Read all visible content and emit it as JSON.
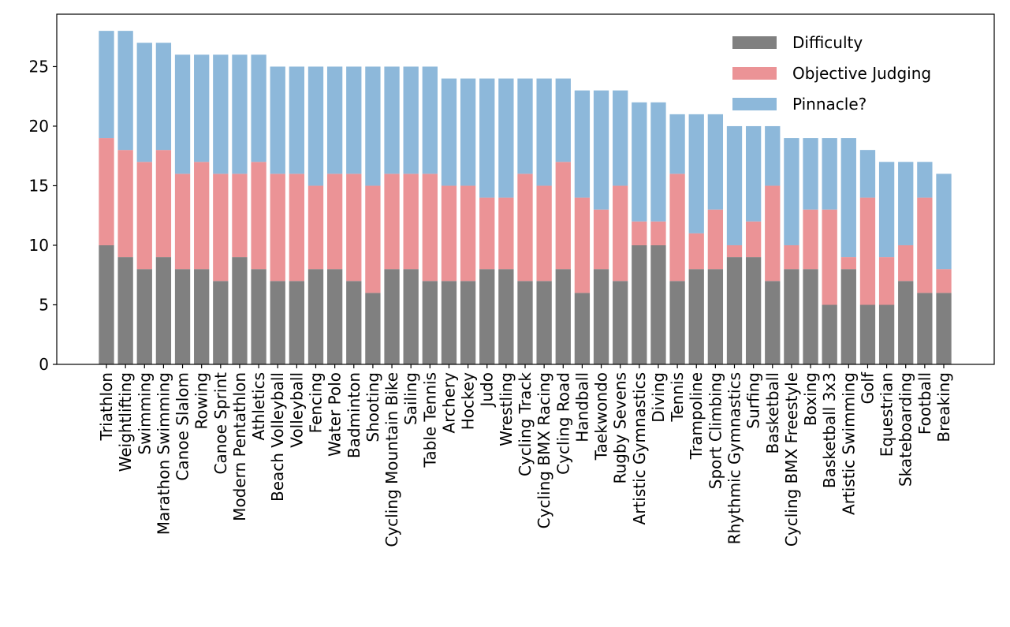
{
  "chart_data": {
    "type": "bar",
    "stacked": true,
    "title": "",
    "xlabel": "",
    "ylabel": "",
    "ylim": [
      0,
      29.4
    ],
    "yticks": [
      0,
      5,
      10,
      15,
      20,
      25
    ],
    "legend_position": "top-right",
    "grid": false,
    "categories": [
      "Triathlon",
      "Weightlifting",
      "Swimming",
      "Marathon Swimming",
      "Canoe Slalom",
      "Rowing",
      "Canoe Sprint",
      "Modern Pentathlon",
      "Athletics",
      "Beach Volleyball",
      "Volleyball",
      "Fencing",
      "Water Polo",
      "Badminton",
      "Shooting",
      "Cycling Mountain Bike",
      "Sailing",
      "Table Tennis",
      "Archery",
      "Hockey",
      "Judo",
      "Wrestling",
      "Cycling Track",
      "Cycling BMX Racing",
      "Cycling Road",
      "Handball",
      "Taekwondo",
      "Rugby Sevens",
      "Artistic Gymnastics",
      "Diving",
      "Tennis",
      "Trampoline",
      "Sport Climbing",
      "Rhythmic Gymnastics",
      "Surfing",
      "Basketball",
      "Cycling BMX Freestyle",
      "Boxing",
      "Basketball 3x3",
      "Artistic Swimming",
      "Golf",
      "Equestrian",
      "Skateboarding",
      "Football",
      "Breaking"
    ],
    "series": [
      {
        "name": "Difficulty",
        "color": "#808080",
        "values": [
          10,
          9,
          8,
          9,
          8,
          8,
          7,
          9,
          8,
          7,
          7,
          8,
          8,
          7,
          6,
          8,
          8,
          7,
          7,
          7,
          8,
          8,
          7,
          7,
          8,
          6,
          8,
          7,
          10,
          10,
          7,
          8,
          8,
          9,
          9,
          7,
          8,
          8,
          5,
          8,
          5,
          5,
          7,
          6,
          6
        ]
      },
      {
        "name": "Objective Judging",
        "color": "#eb9396",
        "values": [
          9,
          9,
          9,
          9,
          8,
          9,
          9,
          7,
          9,
          9,
          9,
          7,
          8,
          9,
          9,
          8,
          8,
          9,
          8,
          8,
          6,
          6,
          9,
          8,
          9,
          8,
          5,
          8,
          2,
          2,
          9,
          3,
          5,
          1,
          3,
          8,
          2,
          5,
          8,
          1,
          9,
          4,
          3,
          8,
          2
        ]
      },
      {
        "name": "Pinnacle?",
        "color": "#8db8da",
        "values": [
          9,
          10,
          10,
          9,
          10,
          9,
          10,
          10,
          9,
          9,
          9,
          10,
          9,
          9,
          10,
          9,
          9,
          9,
          9,
          9,
          10,
          10,
          8,
          9,
          7,
          9,
          10,
          8,
          10,
          10,
          5,
          10,
          8,
          10,
          8,
          5,
          9,
          6,
          6,
          10,
          4,
          8,
          7,
          3,
          8
        ]
      }
    ]
  }
}
